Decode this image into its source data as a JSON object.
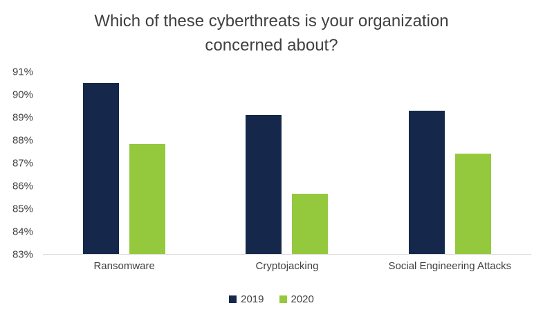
{
  "chart_data": {
    "type": "bar",
    "title": "Which of these cyberthreats is your organization concerned about?",
    "categories": [
      "Ransomware",
      "Cryptojacking",
      "Social Engineering Attacks"
    ],
    "series": [
      {
        "name": "2019",
        "color": "#15284b",
        "values": [
          90.5,
          89.1,
          89.3
        ]
      },
      {
        "name": "2020",
        "color": "#94c93d",
        "values": [
          87.85,
          85.65,
          87.4
        ]
      }
    ],
    "ylim": [
      83,
      91
    ],
    "ytick_step": 1,
    "ytick_suffix": "%",
    "ytick_labels": [
      "83%",
      "84%",
      "85%",
      "86%",
      "87%",
      "88%",
      "89%",
      "90%",
      "91%"
    ],
    "grid": false,
    "legend_position": "bottom"
  }
}
